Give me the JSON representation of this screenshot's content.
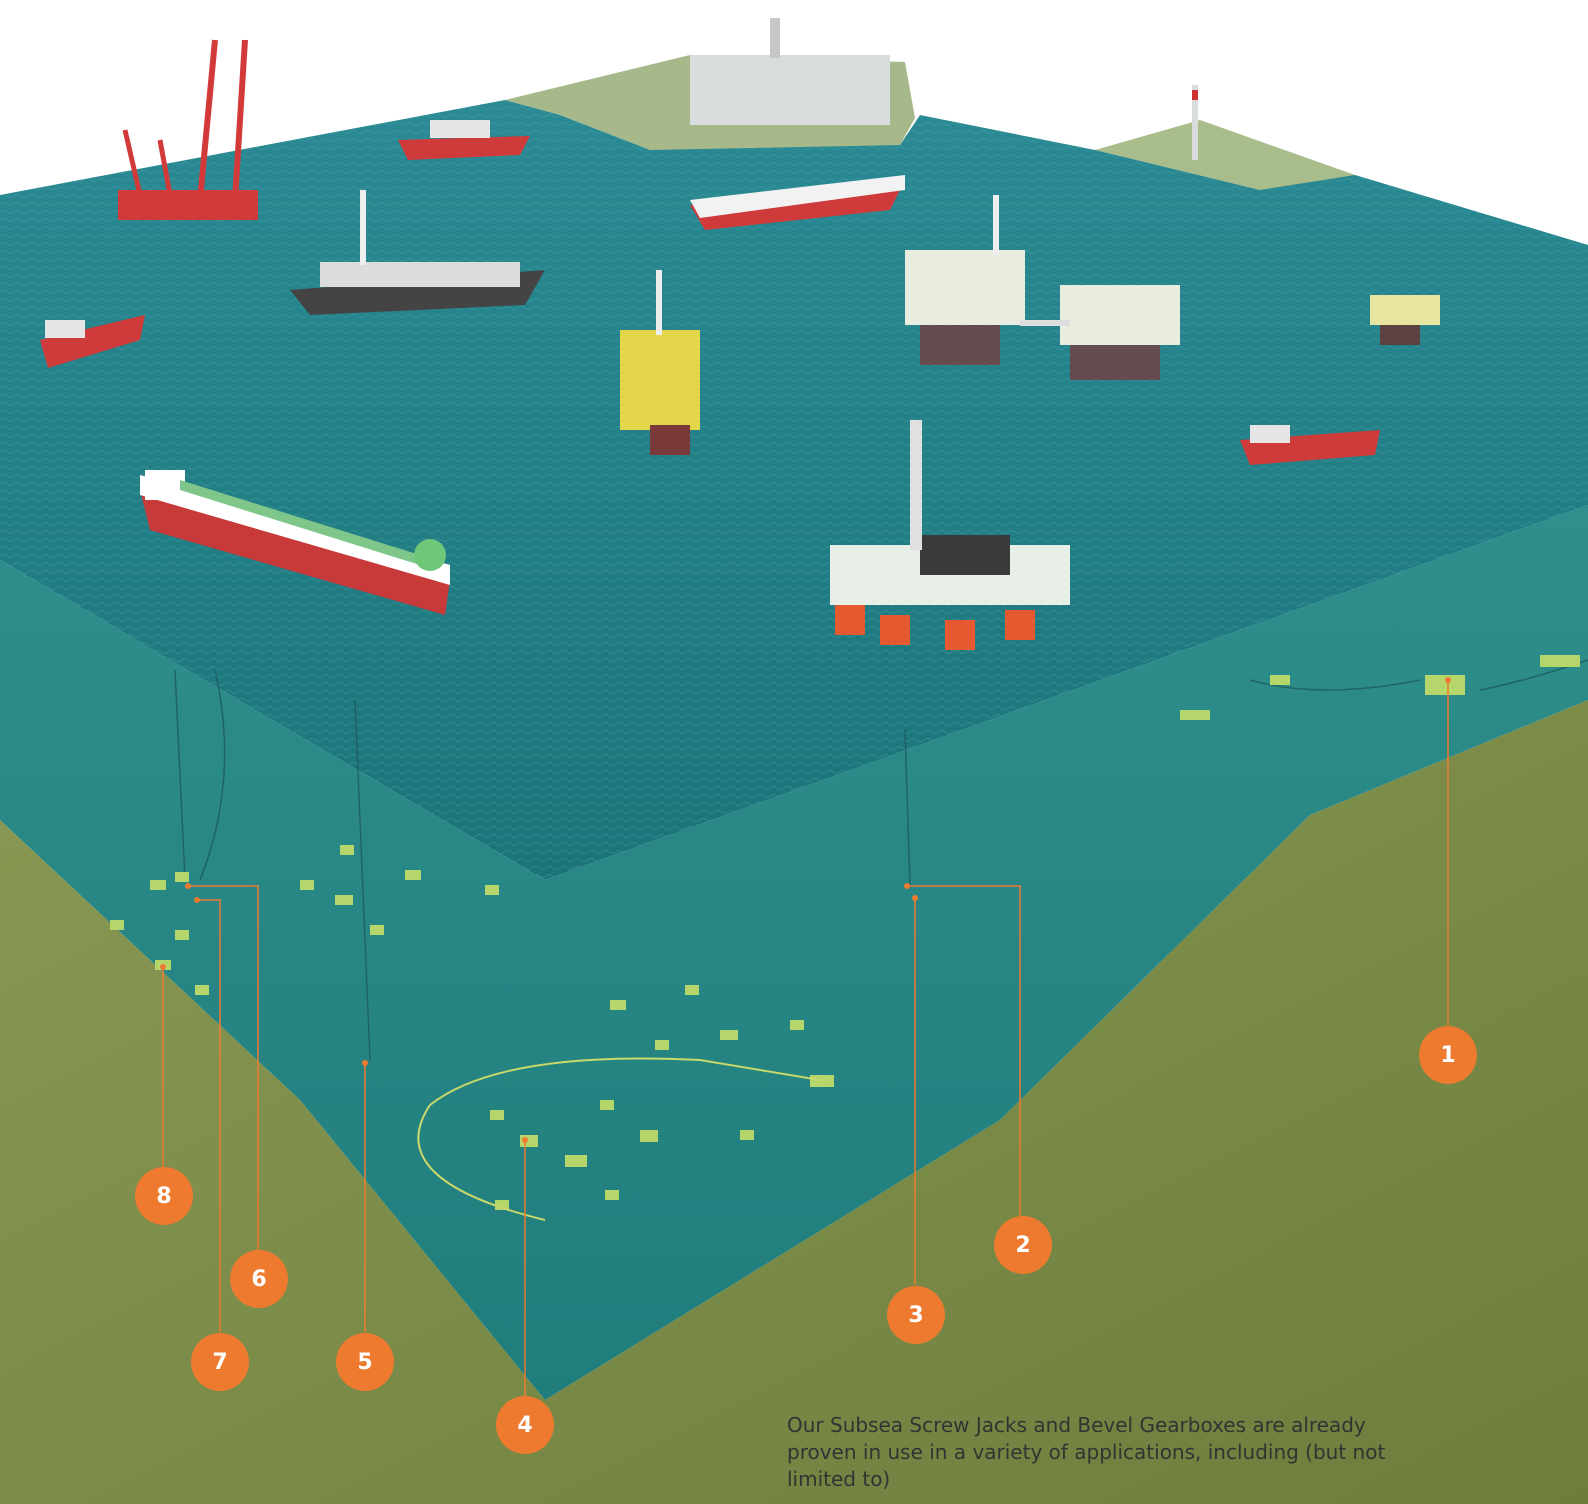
{
  "markers": [
    {
      "number": "1"
    },
    {
      "number": "2"
    },
    {
      "number": "3"
    },
    {
      "number": "4"
    },
    {
      "number": "5"
    },
    {
      "number": "6"
    },
    {
      "number": "7"
    },
    {
      "number": "8"
    }
  ],
  "caption": "Our Subsea Screw Jacks and Bevel Gearboxes are already proven in use in a variety of applications, including (but not limited to)",
  "colors": {
    "sea_surface": "#1c7f86",
    "underwater": "#2a8c8a",
    "seabed": "#7b8a47",
    "marker": "#ee7a30",
    "callout_line": "#ee7a30"
  }
}
